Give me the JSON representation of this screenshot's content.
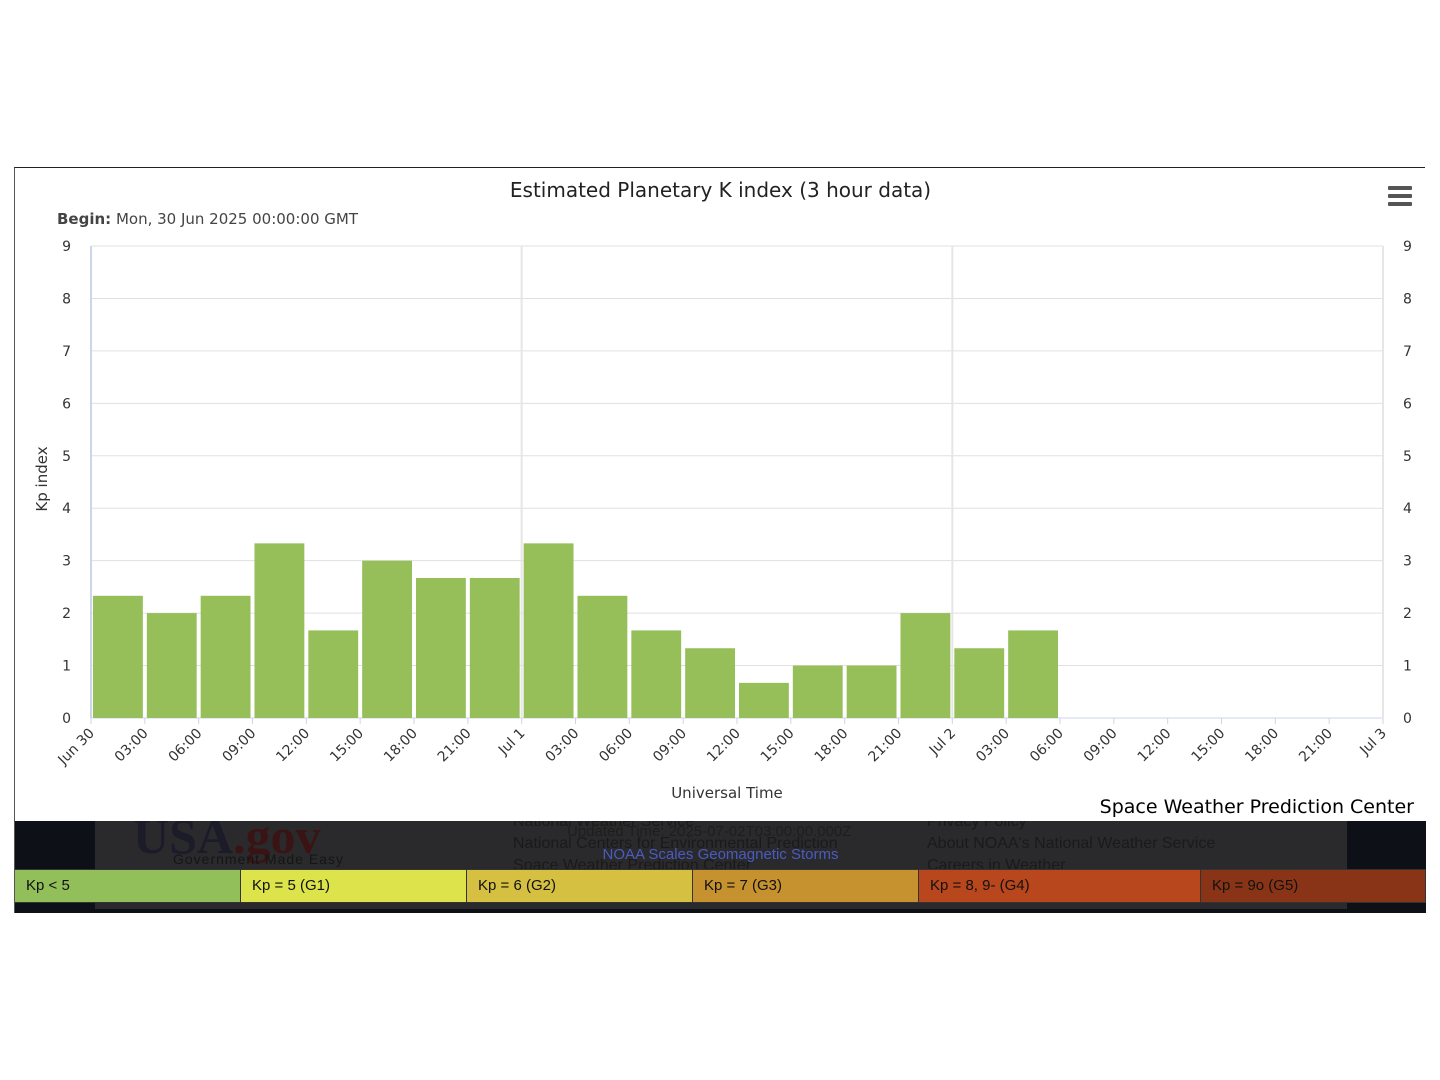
{
  "chart_data": {
    "type": "bar",
    "title": "Estimated Planetary K index (3 hour data)",
    "subtitle_label": "Begin:",
    "subtitle_value": "Mon, 30 Jun 2025 00:00:00 GMT",
    "xlabel": "Universal Time",
    "ylabel": "Kp index",
    "ylim": [
      0,
      9
    ],
    "yticks": [
      0,
      1,
      2,
      3,
      4,
      5,
      6,
      7,
      8,
      9
    ],
    "secondary_yaxis": true,
    "grid": true,
    "x_tick_labels": [
      "Jun 30",
      "03:00",
      "06:00",
      "09:00",
      "12:00",
      "15:00",
      "18:00",
      "21:00",
      "Jul 1",
      "03:00",
      "06:00",
      "09:00",
      "12:00",
      "15:00",
      "18:00",
      "21:00",
      "Jul 2",
      "03:00",
      "06:00",
      "09:00",
      "12:00",
      "15:00",
      "18:00",
      "21:00",
      "Jul 3"
    ],
    "categories": [
      "Jun 30 00:00",
      "Jun 30 03:00",
      "Jun 30 06:00",
      "Jun 30 09:00",
      "Jun 30 12:00",
      "Jun 30 15:00",
      "Jun 30 18:00",
      "Jun 30 21:00",
      "Jul 1 00:00",
      "Jul 1 03:00",
      "Jul 1 06:00",
      "Jul 1 09:00",
      "Jul 1 12:00",
      "Jul 1 15:00",
      "Jul 1 18:00",
      "Jul 1 21:00",
      "Jul 2 00:00",
      "Jul 2 03:00"
    ],
    "values": [
      2.33,
      2.0,
      2.33,
      3.33,
      1.67,
      3.0,
      2.67,
      2.67,
      3.33,
      2.33,
      1.67,
      1.33,
      0.67,
      1.0,
      1.0,
      2.0,
      1.33,
      1.67
    ],
    "bar_color": "#96be59"
  },
  "menu": {
    "icon": "hamburger-menu-icon"
  },
  "credit": "Space Weather Prediction Center",
  "footer": {
    "usa_logo": "USA",
    "usa_logo_gov": ".gov",
    "usa_tagline": "Government     Made Easy",
    "updated_text": "Updated Time: 2025-07-02T03:00:00.000Z",
    "noaa_link": "NOAA Scales Geomagnetic Storms",
    "links_left": [
      "National Weather Service",
      "National Centers for Environmental Prediction",
      "Space Weather Prediction Center"
    ],
    "links_right": [
      "Privacy Policy",
      "About NOAA's National Weather Service",
      "Careers in Weather"
    ]
  },
  "legend": [
    {
      "label": "Kp < 5",
      "color": "#93bf5a"
    },
    {
      "label": "Kp = 5 (G1)",
      "color": "#dce34b"
    },
    {
      "label": "Kp = 6 (G2)",
      "color": "#d5c042"
    },
    {
      "label": "Kp = 7 (G3)",
      "color": "#c6912f"
    },
    {
      "label": "Kp = 8, 9- (G4)",
      "color": "#b8471d"
    },
    {
      "label": "Kp = 9o (G5)",
      "color": "#8a3417"
    }
  ]
}
